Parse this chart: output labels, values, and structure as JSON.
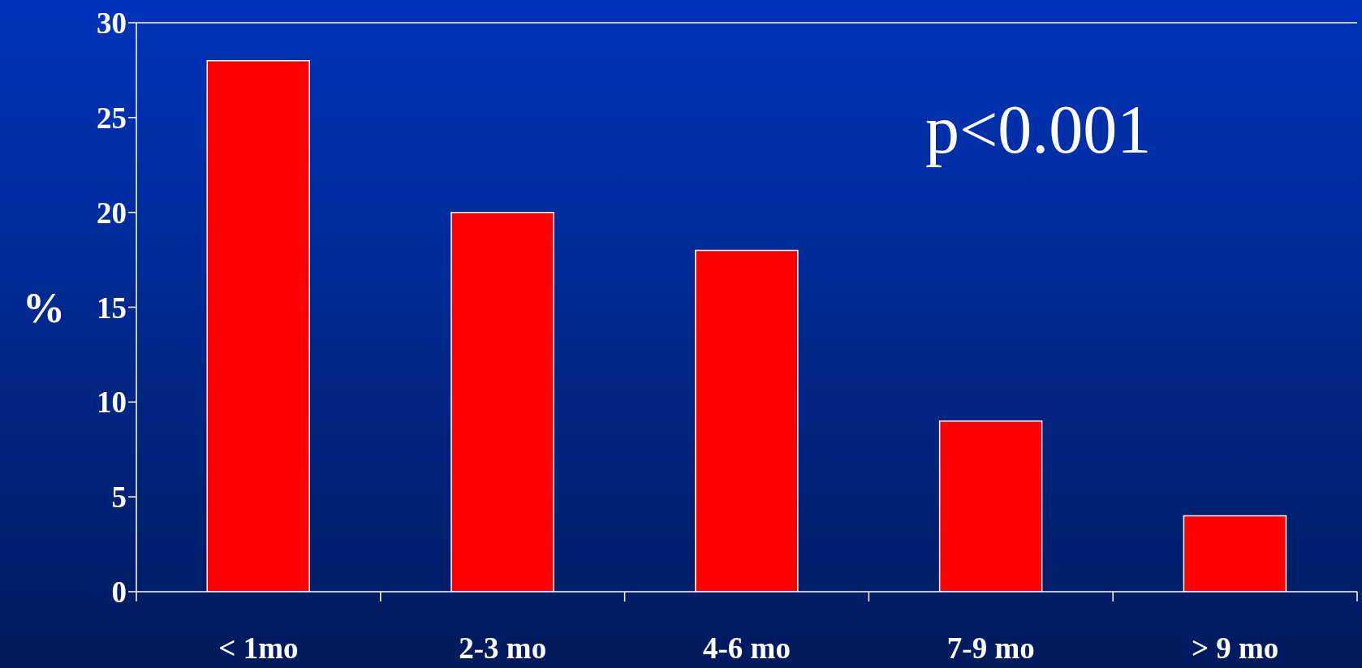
{
  "chart_data": {
    "type": "bar",
    "ylabel": "%",
    "categories": [
      "< 1mo",
      "2-3 mo",
      "4-6 mo",
      "7-9 mo",
      "> 9 mo"
    ],
    "values": [
      28,
      20,
      18,
      9,
      4
    ],
    "color": "#ff0000",
    "ylim": [
      0,
      30
    ],
    "yticks": [
      0,
      5,
      10,
      15,
      20,
      25,
      30
    ],
    "grid": false,
    "annotations": [
      "p<0.001"
    ]
  }
}
